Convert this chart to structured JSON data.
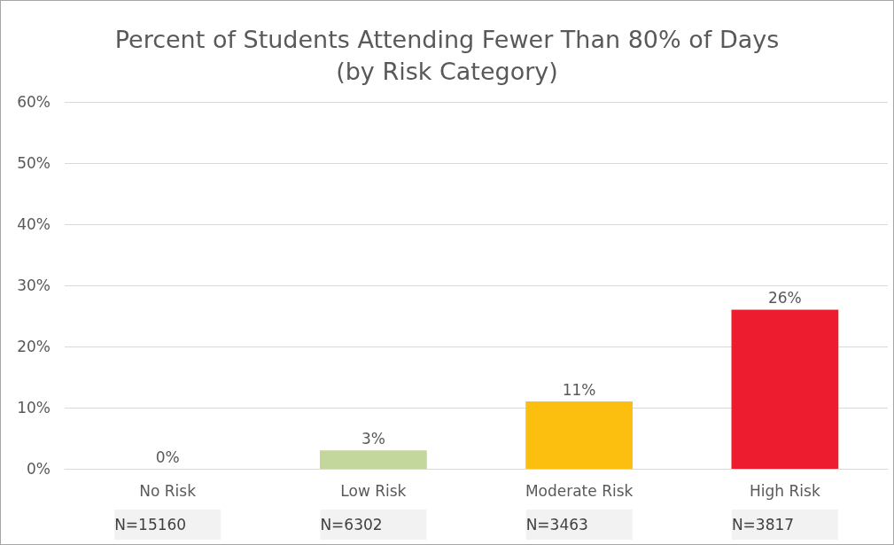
{
  "chart_data": {
    "type": "bar",
    "title": "Percent of Students Attending Fewer Than 80% of Days\n(by Risk Category)",
    "categories": [
      "No Risk",
      "Low Risk",
      "Moderate Risk",
      "High Risk"
    ],
    "values": [
      0,
      3,
      11,
      26
    ],
    "colors": [
      "#1a9bd7",
      "#c3d69b",
      "#fcbf10",
      "#ed1c2e"
    ],
    "value_labels": [
      "0%",
      "3%",
      "11%",
      "26%"
    ],
    "ylim": [
      0,
      60
    ],
    "yticks": [
      {
        "value": 0,
        "label": "0%"
      },
      {
        "value": 10,
        "label": "10%"
      },
      {
        "value": 20,
        "label": "20%"
      },
      {
        "value": 30,
        "label": "30%"
      },
      {
        "value": 40,
        "label": "40%"
      },
      {
        "value": 50,
        "label": "50%"
      },
      {
        "value": 60,
        "label": "60%"
      }
    ],
    "grid": "y",
    "annotations": [
      "N=15160",
      "N=6302",
      "N=3463",
      "N=3817"
    ]
  }
}
